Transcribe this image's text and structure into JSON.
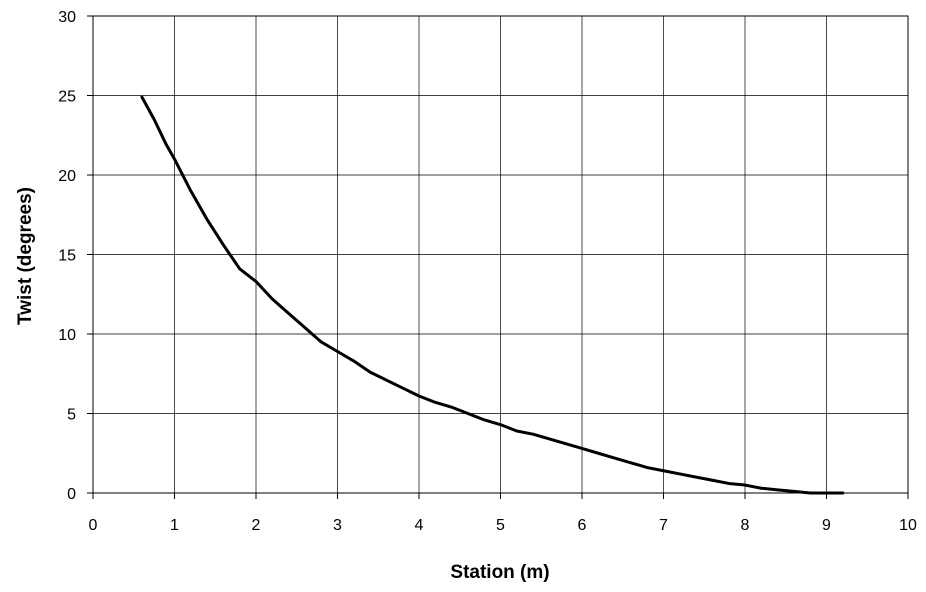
{
  "chart_data": {
    "type": "line",
    "title": "",
    "xlabel": "Station (m)",
    "ylabel": "Twist (degrees)",
    "xlim": [
      0,
      10
    ],
    "ylim": [
      0,
      30
    ],
    "xticks": [
      "0",
      "1",
      "2",
      "3",
      "4",
      "5",
      "6",
      "7",
      "8",
      "9",
      "10"
    ],
    "yticks": [
      "0",
      "5",
      "10",
      "15",
      "20",
      "25",
      "30"
    ],
    "grid": true,
    "legend": "none",
    "colors": {
      "line": "#000000",
      "grid": "#000000",
      "background": "#ffffff"
    },
    "series": [
      {
        "x": [
          0.6,
          0.75,
          0.9,
          1.0,
          1.2,
          1.4,
          1.6,
          1.8,
          2.0,
          2.2,
          2.4,
          2.6,
          2.8,
          3.0,
          3.2,
          3.4,
          3.6,
          3.8,
          4.0,
          4.2,
          4.4,
          4.6,
          4.8,
          5.0,
          5.2,
          5.4,
          5.6,
          5.8,
          6.0,
          6.2,
          6.4,
          6.6,
          6.8,
          7.0,
          7.2,
          7.4,
          7.6,
          7.8,
          8.0,
          8.2,
          8.4,
          8.6,
          8.8,
          9.0,
          9.2
        ],
        "y": [
          24.9,
          23.5,
          21.9,
          21.0,
          19.0,
          17.2,
          15.6,
          14.1,
          13.3,
          12.2,
          11.3,
          10.4,
          9.5,
          8.9,
          8.3,
          7.6,
          7.1,
          6.6,
          6.1,
          5.7,
          5.4,
          5.0,
          4.6,
          4.3,
          3.9,
          3.7,
          3.4,
          3.1,
          2.8,
          2.5,
          2.2,
          1.9,
          1.6,
          1.4,
          1.2,
          1.0,
          0.8,
          0.6,
          0.5,
          0.3,
          0.2,
          0.1,
          0.0,
          0.0,
          0.0
        ]
      }
    ]
  }
}
